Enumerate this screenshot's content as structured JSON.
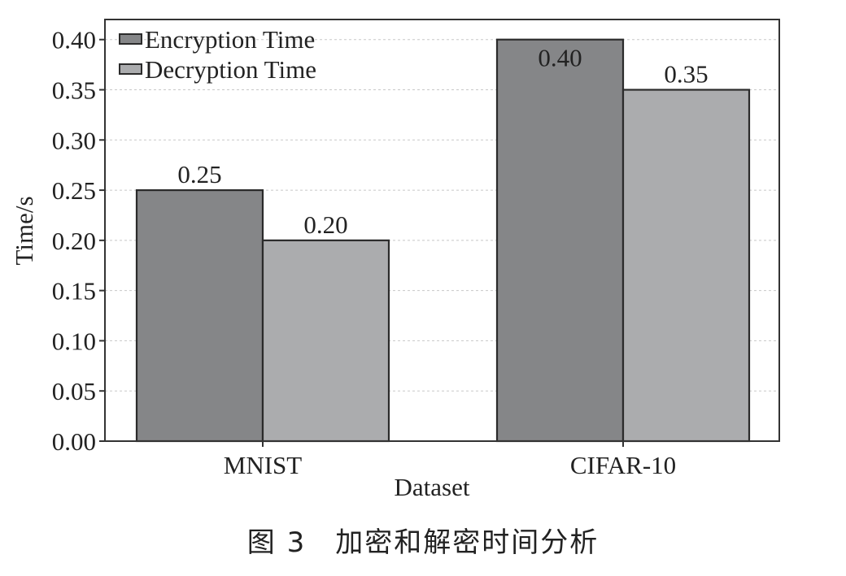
{
  "chart_data": {
    "type": "bar",
    "categories": [
      "MNIST",
      "CIFAR-10"
    ],
    "series": [
      {
        "name": "Encryption Time",
        "values": [
          0.25,
          0.4
        ],
        "color": "#858688"
      },
      {
        "name": "Decryption Time",
        "values": [
          0.2,
          0.35
        ],
        "color": "#abacae"
      }
    ],
    "data_labels": [
      [
        "0.25",
        "0.40"
      ],
      [
        "0.20",
        "0.35"
      ]
    ],
    "xlabel": "Dataset",
    "ylabel": "Time/s",
    "ylim": [
      0,
      0.42
    ],
    "yticks": [
      0.0,
      0.05,
      0.1,
      0.15,
      0.2,
      0.25,
      0.3,
      0.35,
      0.4
    ],
    "ytick_labels": [
      "0.00",
      "0.05",
      "0.10",
      "0.15",
      "0.20",
      "0.25",
      "0.30",
      "0.35",
      "0.40"
    ],
    "grid": true,
    "legend_position": "top-left"
  },
  "caption": "图 3　加密和解密时间分析",
  "colors": {
    "encryption": "#858688",
    "decryption": "#abacae",
    "grid": "#c8c8c8",
    "axis": "#333333"
  }
}
